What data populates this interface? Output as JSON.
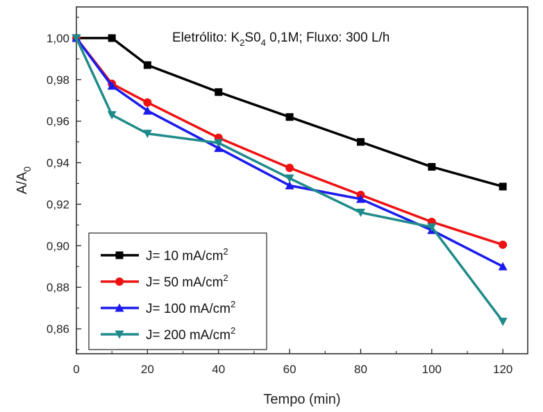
{
  "chart_data": {
    "type": "line",
    "title": "",
    "annotation": {
      "prefix": "Eletrólito: K",
      "sub1": "2",
      "mid": "S0",
      "sub2": "4",
      "suffix": " 0,1M; Fluxo: 300 L/h"
    },
    "xlabel": "Tempo (min)",
    "ylabel": {
      "main": "A/A",
      "sub": "0"
    },
    "xlim": [
      0,
      127
    ],
    "ylim": [
      0.848,
      1.015
    ],
    "x_ticks": [
      0,
      20,
      40,
      60,
      80,
      100,
      120
    ],
    "x_tick_labels": [
      "0",
      "20",
      "40",
      "60",
      "80",
      "100",
      "120"
    ],
    "y_ticks": [
      0.86,
      0.88,
      0.9,
      0.92,
      0.94,
      0.96,
      0.98,
      1.0
    ],
    "y_tick_labels": [
      "0,86",
      "0,88",
      "0,90",
      "0,92",
      "0,94",
      "0,96",
      "0,98",
      "1,00"
    ],
    "grid": false,
    "legend_position": "bottom-left",
    "series": [
      {
        "name": "J= 10 mA/cm",
        "name_sup": "2",
        "color": "#000000",
        "marker": "square",
        "x": [
          0,
          10,
          20,
          40,
          60,
          80,
          100,
          120
        ],
        "y": [
          1.0,
          1.0,
          0.987,
          0.974,
          0.962,
          0.95,
          0.938,
          0.9285
        ]
      },
      {
        "name": "J= 50 mA/cm",
        "name_sup": "2",
        "color": "#ee1111",
        "marker": "circle",
        "x": [
          0,
          10,
          20,
          40,
          60,
          80,
          100,
          120
        ],
        "y": [
          1.0,
          0.978,
          0.969,
          0.952,
          0.9375,
          0.9245,
          0.9115,
          0.9005
        ]
      },
      {
        "name": "J= 100 mA/cm",
        "name_sup": "2",
        "color": "#1a1aee",
        "marker": "triangle-up",
        "x": [
          0,
          10,
          20,
          40,
          60,
          80,
          100,
          120
        ],
        "y": [
          1.0,
          0.977,
          0.965,
          0.947,
          0.929,
          0.9225,
          0.9075,
          0.89
        ]
      },
      {
        "name": "J= 200 mA/cm",
        "name_sup": "2",
        "color": "#1f8a8a",
        "marker": "triangle-down",
        "x": [
          0,
          10,
          20,
          40,
          60,
          80,
          100,
          120
        ],
        "y": [
          1.0,
          0.963,
          0.954,
          0.9495,
          0.9325,
          0.916,
          0.909,
          0.8635
        ]
      }
    ]
  }
}
